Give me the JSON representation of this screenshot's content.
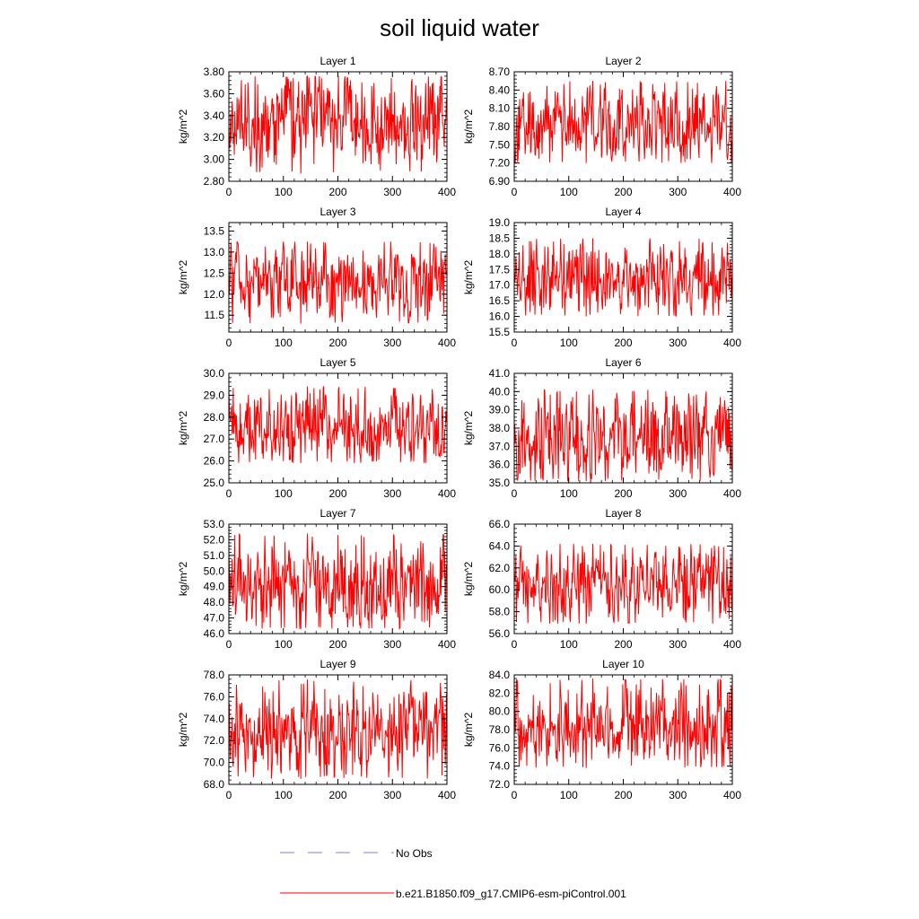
{
  "figure": {
    "title": "soil liquid water"
  },
  "legend": {
    "entries": [
      {
        "label": "No Obs",
        "style": "dashed",
        "color": "#7d7de0"
      },
      {
        "label": "b.e21.B1850.f09_g17.CMIP6-esm-piControl.001",
        "style": "solid",
        "color": "#ff0000"
      }
    ]
  },
  "chart_data": [
    {
      "type": "line",
      "title": "Layer 1",
      "ylabel": "kg/m^2",
      "xlim": [
        0,
        400
      ],
      "ylim": [
        2.8,
        3.8
      ],
      "xticks": [
        0,
        100,
        200,
        300,
        400
      ],
      "yticks": [
        "2.80",
        "3.00",
        "3.20",
        "3.40",
        "3.60",
        "3.80"
      ],
      "series": [
        {
          "color": "#ff0000",
          "n": 400,
          "mean": 3.35,
          "min": 2.87,
          "max": 3.76
        }
      ]
    },
    {
      "type": "line",
      "title": "Layer 2",
      "ylabel": "kg/m^2",
      "xlim": [
        0,
        400
      ],
      "ylim": [
        6.9,
        8.7
      ],
      "xticks": [
        0,
        100,
        200,
        300,
        400
      ],
      "yticks": [
        "6.90",
        "7.20",
        "7.50",
        "7.80",
        "8.10",
        "8.40",
        "8.70"
      ],
      "series": [
        {
          "color": "#ff0000",
          "n": 400,
          "mean": 7.85,
          "min": 7.2,
          "max": 8.55
        }
      ]
    },
    {
      "type": "line",
      "title": "Layer 3",
      "ylabel": "kg/m^2",
      "xlim": [
        0,
        400
      ],
      "ylim": [
        11.1,
        13.7
      ],
      "xticks": [
        0,
        100,
        200,
        300,
        400
      ],
      "yticks": [
        "11.5",
        "12.0",
        "12.5",
        "13.0",
        "13.5"
      ],
      "series": [
        {
          "color": "#ff0000",
          "n": 400,
          "mean": 12.3,
          "min": 11.3,
          "max": 13.25
        }
      ]
    },
    {
      "type": "line",
      "title": "Layer 4",
      "ylabel": "kg/m^2",
      "xlim": [
        0,
        400
      ],
      "ylim": [
        15.5,
        19.0
      ],
      "xticks": [
        0,
        100,
        200,
        300,
        400
      ],
      "yticks": [
        "15.5",
        "16.0",
        "16.5",
        "17.0",
        "17.5",
        "18.0",
        "18.5",
        "19.0"
      ],
      "series": [
        {
          "color": "#ff0000",
          "n": 400,
          "mean": 17.2,
          "min": 16.0,
          "max": 18.5
        }
      ]
    },
    {
      "type": "line",
      "title": "Layer 5",
      "ylabel": "kg/m^2",
      "xlim": [
        0,
        400
      ],
      "ylim": [
        25.0,
        30.0
      ],
      "xticks": [
        0,
        100,
        200,
        300,
        400
      ],
      "yticks": [
        "25.0",
        "26.0",
        "27.0",
        "28.0",
        "29.0",
        "30.0"
      ],
      "series": [
        {
          "color": "#ff0000",
          "n": 400,
          "mean": 27.5,
          "min": 25.9,
          "max": 29.4
        }
      ]
    },
    {
      "type": "line",
      "title": "Layer 6",
      "ylabel": "kg/m^2",
      "xlim": [
        0,
        400
      ],
      "ylim": [
        35.0,
        41.0
      ],
      "xticks": [
        0,
        100,
        200,
        300,
        400
      ],
      "yticks": [
        "35.0",
        "36.0",
        "37.0",
        "38.0",
        "39.0",
        "40.0",
        "41.0"
      ],
      "series": [
        {
          "color": "#ff0000",
          "n": 400,
          "mean": 37.4,
          "min": 35.1,
          "max": 40.1
        }
      ]
    },
    {
      "type": "line",
      "title": "Layer 7",
      "ylabel": "kg/m^2",
      "xlim": [
        0,
        400
      ],
      "ylim": [
        46.0,
        53.0
      ],
      "xticks": [
        0,
        100,
        200,
        300,
        400
      ],
      "yticks": [
        "46.0",
        "47.0",
        "48.0",
        "49.0",
        "50.0",
        "51.0",
        "52.0",
        "53.0"
      ],
      "series": [
        {
          "color": "#ff0000",
          "n": 400,
          "mean": 49.2,
          "min": 46.3,
          "max": 52.4
        }
      ]
    },
    {
      "type": "line",
      "title": "Layer 8",
      "ylabel": "kg/m^2",
      "xlim": [
        0,
        400
      ],
      "ylim": [
        56.0,
        66.0
      ],
      "xticks": [
        0,
        100,
        200,
        300,
        400
      ],
      "yticks": [
        "56.0",
        "58.0",
        "60.0",
        "62.0",
        "64.0",
        "66.0"
      ],
      "series": [
        {
          "color": "#ff0000",
          "n": 400,
          "mean": 60.6,
          "min": 56.9,
          "max": 64.2
        }
      ]
    },
    {
      "type": "line",
      "title": "Layer 9",
      "ylabel": "kg/m^2",
      "xlim": [
        0,
        400
      ],
      "ylim": [
        68.0,
        78.0
      ],
      "xticks": [
        0,
        100,
        200,
        300,
        400
      ],
      "yticks": [
        "68.0",
        "70.0",
        "72.0",
        "74.0",
        "76.0",
        "78.0"
      ],
      "series": [
        {
          "color": "#ff0000",
          "n": 400,
          "mean": 73.0,
          "min": 68.5,
          "max": 77.6
        }
      ]
    },
    {
      "type": "line",
      "title": "Layer 10",
      "ylabel": "kg/m^2",
      "xlim": [
        0,
        400
      ],
      "ylim": [
        72.0,
        84.0
      ],
      "xticks": [
        0,
        100,
        200,
        300,
        400
      ],
      "yticks": [
        "72.0",
        "74.0",
        "76.0",
        "78.0",
        "80.0",
        "82.0",
        "84.0"
      ],
      "series": [
        {
          "color": "#ff0000",
          "n": 400,
          "mean": 78.3,
          "min": 73.8,
          "max": 83.6
        }
      ]
    }
  ]
}
